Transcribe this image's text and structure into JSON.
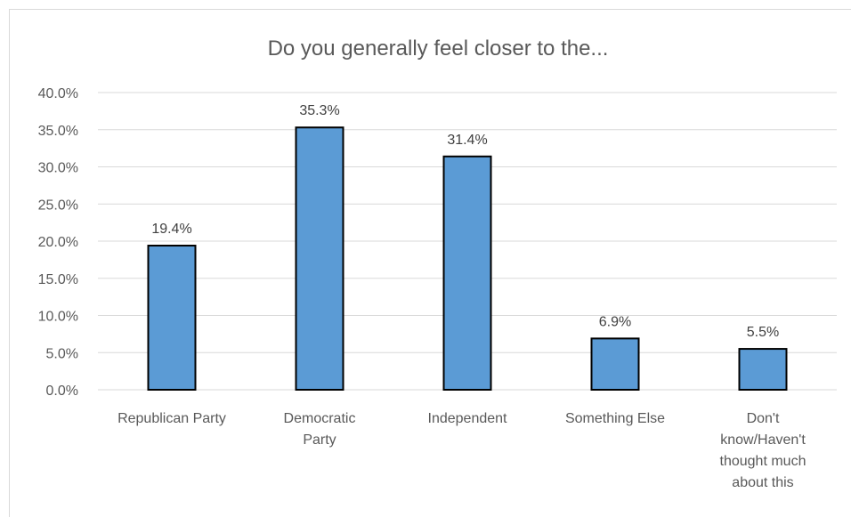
{
  "chart_data": {
    "type": "bar",
    "title": "Do you generally feel closer to the...",
    "categories": [
      [
        "Republican Party"
      ],
      [
        "Democratic",
        "Party"
      ],
      [
        "Independent"
      ],
      [
        "Something Else"
      ],
      [
        "Don't",
        "know/Haven't",
        "thought much",
        "about this"
      ]
    ],
    "values": [
      19.4,
      35.3,
      31.4,
      6.9,
      5.5
    ],
    "data_labels": [
      "19.4%",
      "35.3%",
      "31.4%",
      "6.9%",
      "5.5%"
    ],
    "y_ticks": [
      "0.0%",
      "5.0%",
      "10.0%",
      "15.0%",
      "20.0%",
      "25.0%",
      "30.0%",
      "35.0%",
      "40.0%"
    ],
    "ylim": [
      0,
      40
    ],
    "xlabel": "",
    "ylabel": "",
    "grid": true,
    "bar_color": "#5b9bd5",
    "bar_outline": "#000000",
    "gridline_color": "#d9d9d9"
  }
}
